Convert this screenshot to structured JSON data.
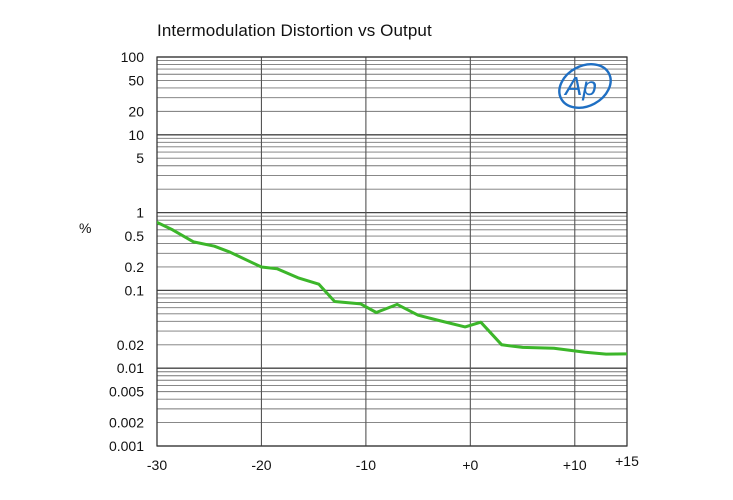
{
  "chart_data": {
    "type": "line",
    "title": "Intermodulation Distortion vs Output",
    "xlabel": "",
    "ylabel": "%",
    "xlim": [
      -30,
      15
    ],
    "ylim": [
      0.001,
      100
    ],
    "yscale": "log",
    "grid": true,
    "x_ticks": [
      {
        "value": -30,
        "label": "-30"
      },
      {
        "value": -20,
        "label": "-20"
      },
      {
        "value": -10,
        "label": "-10"
      },
      {
        "value": 0,
        "label": "+0"
      },
      {
        "value": 10,
        "label": "+10"
      },
      {
        "value": 15,
        "label": "+15"
      }
    ],
    "y_ticks": [
      {
        "value": 100,
        "label": "100"
      },
      {
        "value": 50,
        "label": "50"
      },
      {
        "value": 20,
        "label": "20"
      },
      {
        "value": 10,
        "label": "10"
      },
      {
        "value": 5,
        "label": "5"
      },
      {
        "value": 1,
        "label": "1"
      },
      {
        "value": 0.5,
        "label": "0.5"
      },
      {
        "value": 0.2,
        "label": "0.2"
      },
      {
        "value": 0.1,
        "label": "0.1"
      },
      {
        "value": 0.02,
        "label": "0.02"
      },
      {
        "value": 0.01,
        "label": "0.01"
      },
      {
        "value": 0.005,
        "label": "0.005"
      },
      {
        "value": 0.002,
        "label": "0.002"
      },
      {
        "value": 0.001,
        "label": "0.001"
      }
    ],
    "series": [
      {
        "color": "#3cb62a",
        "x": [
          -30,
          -28.5,
          -26.5,
          -24.5,
          -23,
          -20,
          -18.5,
          -16.5,
          -14.5,
          -13,
          -10.5,
          -9,
          -7,
          -5,
          -3,
          -0.5,
          1,
          3,
          5,
          8,
          11,
          13,
          15.5,
          18
        ],
        "y": [
          0.75,
          0.6,
          0.42,
          0.37,
          0.31,
          0.2,
          0.19,
          0.145,
          0.12,
          0.072,
          0.067,
          0.052,
          0.066,
          0.048,
          0.041,
          0.034,
          0.039,
          0.02,
          0.0185,
          0.018,
          0.016,
          0.0152,
          0.0153,
          0.0143
        ]
      }
    ],
    "logo": "Ap"
  }
}
